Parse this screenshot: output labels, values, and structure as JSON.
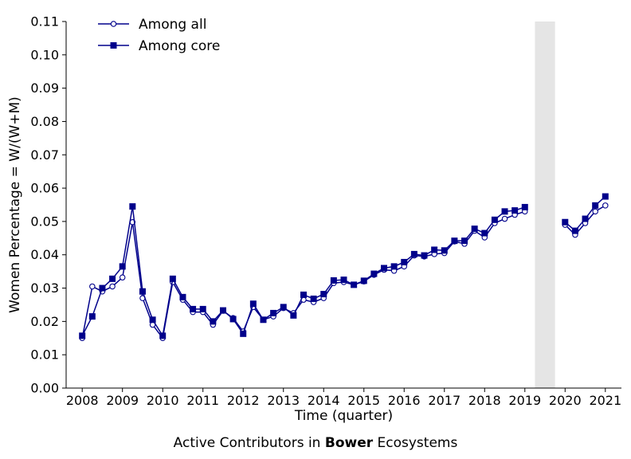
{
  "caption": {
    "prefix": "Active Contributors in ",
    "bold": "Bower",
    "suffix": " Ecosystems"
  },
  "chart_data": {
    "type": "line",
    "xlabel": "Time (quarter)",
    "ylabel": "Women Percentage = W/(W+M)",
    "xlim": [
      2007.6,
      2021.4
    ],
    "ylim": [
      0,
      0.11
    ],
    "xticks": [
      2008,
      2009,
      2010,
      2011,
      2012,
      2013,
      2014,
      2015,
      2016,
      2017,
      2018,
      2019,
      2020,
      2021
    ],
    "yticks": [
      "0.00",
      "0.01",
      "0.02",
      "0.03",
      "0.04",
      "0.05",
      "0.06",
      "0.07",
      "0.08",
      "0.09",
      "0.10",
      "0.11"
    ],
    "legend_position": "top-left",
    "grid": false,
    "shaded_region": {
      "x": [
        2019.25,
        2019.75
      ],
      "color": "#e5e5e5"
    },
    "line_color": "#00008b",
    "series": [
      {
        "name": "Among all",
        "marker": "open-circle",
        "segments": [
          {
            "x": [
              2008.0,
              2008.25,
              2008.5,
              2008.75,
              2009.0,
              2009.25,
              2009.5,
              2009.75,
              2010.0,
              2010.25,
              2010.5,
              2010.75,
              2011.0,
              2011.25,
              2011.5,
              2011.75,
              2012.0,
              2012.25,
              2012.5,
              2012.75,
              2013.0,
              2013.25,
              2013.5,
              2013.75,
              2014.0,
              2014.25,
              2014.5,
              2014.75,
              2015.0,
              2015.25,
              2015.5,
              2015.75,
              2016.0,
              2016.25,
              2016.5,
              2016.75,
              2017.0,
              2017.25,
              2017.5,
              2017.75,
              2018.0,
              2018.25,
              2018.5,
              2018.75,
              2019.0
            ],
            "y": [
              0.015,
              0.0305,
              0.029,
              0.0305,
              0.0332,
              0.0498,
              0.027,
              0.019,
              0.015,
              0.0318,
              0.0265,
              0.0228,
              0.0228,
              0.019,
              0.0232,
              0.021,
              0.017,
              0.0243,
              0.0205,
              0.0215,
              0.024,
              0.0225,
              0.0265,
              0.0258,
              0.027,
              0.0315,
              0.0318,
              0.031,
              0.032,
              0.034,
              0.0355,
              0.0352,
              0.0365,
              0.0398,
              0.0395,
              0.0402,
              0.0405,
              0.044,
              0.0433,
              0.0472,
              0.0452,
              0.0495,
              0.0508,
              0.052,
              0.053
            ]
          },
          {
            "x": [
              2020.0,
              2020.25,
              2020.5,
              2020.75,
              2021.0
            ],
            "y": [
              0.049,
              0.046,
              0.0495,
              0.053,
              0.0548
            ]
          }
        ]
      },
      {
        "name": "Among core",
        "marker": "filled-square",
        "segments": [
          {
            "x": [
              2008.0,
              2008.25,
              2008.5,
              2008.75,
              2009.0,
              2009.25,
              2009.5,
              2009.75,
              2010.0,
              2010.25,
              2010.5,
              2010.75,
              2011.0,
              2011.25,
              2011.5,
              2011.75,
              2012.0,
              2012.25,
              2012.5,
              2012.75,
              2013.0,
              2013.25,
              2013.5,
              2013.75,
              2014.0,
              2014.25,
              2014.5,
              2014.75,
              2015.0,
              2015.25,
              2015.5,
              2015.75,
              2016.0,
              2016.25,
              2016.5,
              2016.75,
              2017.0,
              2017.25,
              2017.5,
              2017.75,
              2018.0,
              2018.25,
              2018.5,
              2018.75,
              2019.0
            ],
            "y": [
              0.0157,
              0.0215,
              0.03,
              0.0328,
              0.0365,
              0.0545,
              0.029,
              0.0205,
              0.0157,
              0.0328,
              0.0273,
              0.0237,
              0.0237,
              0.02,
              0.0233,
              0.0207,
              0.0163,
              0.0253,
              0.0205,
              0.0225,
              0.0243,
              0.0218,
              0.028,
              0.0268,
              0.0282,
              0.0323,
              0.0325,
              0.031,
              0.0322,
              0.0343,
              0.036,
              0.0365,
              0.0378,
              0.0402,
              0.0398,
              0.0415,
              0.0413,
              0.0442,
              0.0442,
              0.0478,
              0.0465,
              0.0505,
              0.053,
              0.0533,
              0.0543
            ]
          },
          {
            "x": [
              2020.0,
              2020.25,
              2020.5,
              2020.75,
              2021.0
            ],
            "y": [
              0.0498,
              0.0472,
              0.0508,
              0.0548,
              0.0575
            ]
          }
        ]
      }
    ]
  }
}
